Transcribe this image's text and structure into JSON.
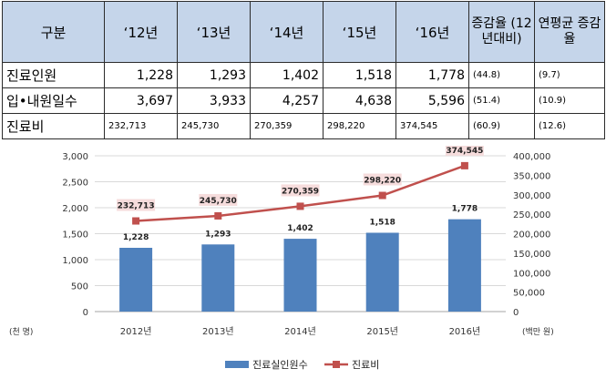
{
  "table": {
    "headers": [
      "구분",
      "‘12년",
      "‘13년",
      "‘14년",
      "‘15년",
      "‘16년",
      "증감율 (12년대비)",
      "연평균 증감율"
    ],
    "rows": [
      {
        "label": "진료인원",
        "values": [
          "1,228",
          "1,293",
          "1,402",
          "1,518",
          "1,778"
        ],
        "change": "(44.8)",
        "annual": "(9.7)"
      },
      {
        "label": "입•내원일수",
        "values": [
          "3,697",
          "3,933",
          "4,257",
          "4,638",
          "5,596"
        ],
        "change": "(51.4)",
        "annual": "(10.9)"
      },
      {
        "label": "진료비",
        "values": [
          "232,713",
          "245,730",
          "270,359",
          "298,220",
          "374,545"
        ],
        "change": "(60.9)",
        "annual": "(12.6)"
      }
    ]
  },
  "chart_data": {
    "type": "bar",
    "categories": [
      "2012년",
      "2013년",
      "2014년",
      "2015년",
      "2016년"
    ],
    "series": [
      {
        "name": "진료실인원수",
        "type": "bar",
        "axis": "left",
        "color": "#4f81bd",
        "values": [
          1228,
          1293,
          1402,
          1518,
          1778
        ],
        "labels": [
          "1,228",
          "1,293",
          "1,402",
          "1,518",
          "1,778"
        ]
      },
      {
        "name": "진료비",
        "type": "line",
        "axis": "right",
        "color": "#c0504d",
        "values": [
          232713,
          245730,
          270359,
          298220,
          374545
        ],
        "labels": [
          "232,713",
          "245,730",
          "270,359",
          "298,220",
          "374,545"
        ]
      }
    ],
    "ylabel_left": "(천 명)",
    "ylabel_right": "(백만 원)",
    "ylim_left": [
      0,
      3000
    ],
    "ylim_right": [
      0,
      400000
    ],
    "yticks_left": [
      "0",
      "500",
      "1,000",
      "1,500",
      "2,000",
      "2,500",
      "3,000"
    ],
    "yticks_right": [
      "0",
      "50,000",
      "100,000",
      "150,000",
      "200,000",
      "250,000",
      "300,000",
      "350,000",
      "400,000"
    ],
    "grid": true,
    "legend": "bottom"
  }
}
